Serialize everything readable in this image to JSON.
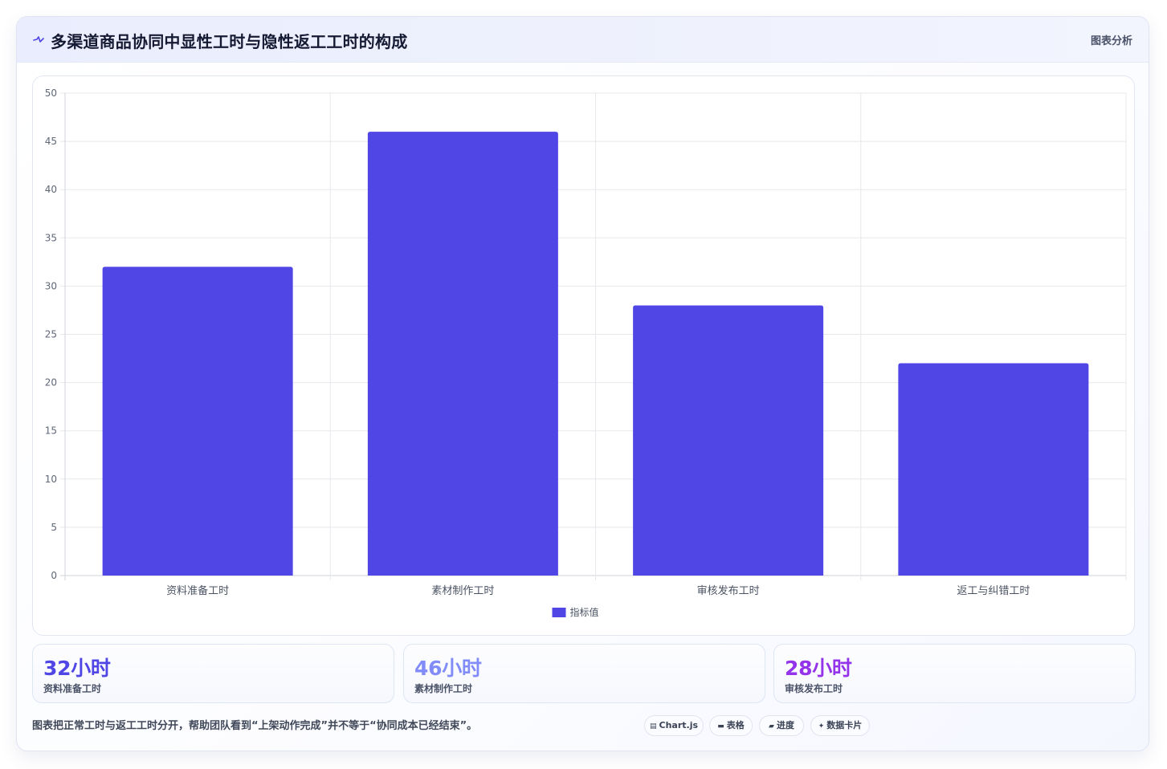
{
  "header": {
    "title": "多渠道商品协同中显性工时与隐性返工工时的构成",
    "action_label": "图表分析",
    "icon": "pulse-line-icon"
  },
  "chart_data": {
    "type": "bar",
    "categories": [
      "资料准备工时",
      "素材制作工时",
      "审核发布工时",
      "返工与纠错工时"
    ],
    "series": [
      {
        "name": "指标值",
        "values": [
          32,
          46,
          28,
          22
        ],
        "color": "#4f46e5"
      }
    ],
    "ylim": [
      0,
      50
    ],
    "yticks": [
      "0",
      "5",
      "10",
      "15",
      "20",
      "25",
      "30",
      "35",
      "40",
      "45",
      "50"
    ],
    "grid": true,
    "legend_position": "bottom"
  },
  "stats": [
    {
      "value": "32小时",
      "label": "资料准备工时",
      "color": "#4f46e5"
    },
    {
      "value": "46小时",
      "label": "素材制作工时",
      "color": "#818cf8"
    },
    {
      "value": "28小时",
      "label": "审核发布工时",
      "color": "#9333ea"
    }
  ],
  "footer": {
    "note": "图表把正常工时与返工工时分开，帮助团队看到“上架动作完成”并不等于“协同成本已经结束”。"
  },
  "pills": [
    {
      "icon": "chart-icon",
      "glyph": "▤",
      "label": "Chart.js"
    },
    {
      "icon": "table-icon",
      "glyph": "▬",
      "label": "表格"
    },
    {
      "icon": "progress-icon",
      "glyph": "▰",
      "label": "进度"
    },
    {
      "icon": "sparkle-icon",
      "glyph": "✦",
      "label": "数据卡片"
    }
  ]
}
